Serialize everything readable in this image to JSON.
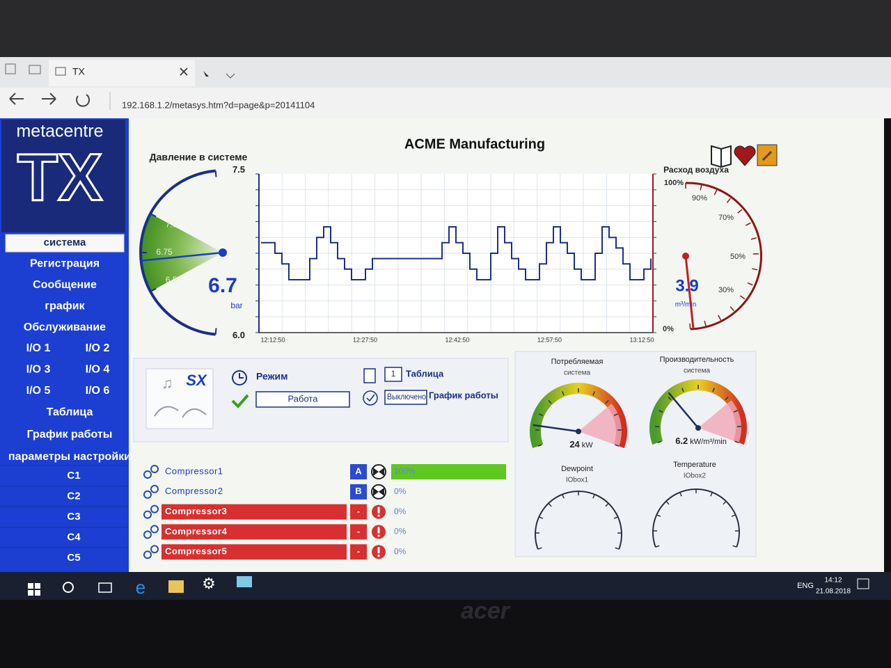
{
  "browser": {
    "tab_title": "TX",
    "url": "192.168.1.2/metasys.htm?d=page&p=20141104"
  },
  "sidebar": {
    "brand": "metacentre",
    "logo": "TX",
    "menu": [
      "система",
      "Регистрация",
      "Сообщение",
      "график",
      "Обслуживание"
    ],
    "io": [
      "I/O 1",
      "I/O 2",
      "I/O 3",
      "I/O 4",
      "I/O 5",
      "I/O 6"
    ],
    "menu2": [
      "Таблица",
      "График работы",
      "параметры настройки"
    ],
    "circuits": [
      "C1",
      "C2",
      "C3",
      "C4",
      "C5"
    ]
  },
  "title": "ACME Manufacturing",
  "pressure": {
    "label": "Давление в системе",
    "scale": [
      7.5,
      {
        "value": 7,
        "label": "7.0"
      },
      6.75,
      6.5,
      {
        "value": 6,
        "label": "6.0"
      }
    ],
    "value": 6.7,
    "unit": "bar"
  },
  "trend": {
    "x_labels": [
      "12:12:50",
      "12:27:50",
      "12:42:50",
      "12:57:50",
      "13:12:50"
    ],
    "values": [
      6.85,
      6.85,
      6.75,
      6.65,
      6.5,
      6.5,
      6.5,
      6.7,
      6.9,
      7.0,
      6.85,
      6.7,
      6.6,
      6.5,
      6.5,
      6.6,
      6.7,
      6.7,
      6.7,
      6.7,
      6.7,
      6.7,
      6.7,
      6.7,
      6.7,
      6.7,
      6.85,
      7.0,
      6.85,
      6.75,
      6.6,
      6.5,
      6.5,
      6.75,
      7.0,
      6.85,
      6.7,
      6.6,
      6.5,
      6.5,
      6.65,
      6.85,
      7.0,
      6.85,
      6.75,
      6.6,
      6.5,
      6.5,
      6.75,
      7.0,
      6.9,
      6.8,
      6.65,
      6.5,
      6.5,
      6.6,
      6.7
    ]
  },
  "airflow": {
    "label": "Расход воздуха",
    "scale": [
      "100%",
      "90%",
      "70%",
      "50%",
      "30%",
      "0%"
    ],
    "value": 3.9,
    "unit": "m³/min"
  },
  "mode_panel": {
    "sx": "SX",
    "mode_label": "Режим",
    "mode_value": "Работа",
    "table_index": 1,
    "table_label": "Таблица",
    "schedule_state": "Выключено",
    "schedule_label": "График работы"
  },
  "gauges": [
    {
      "title": "Потребляемая",
      "subtitle": "система",
      "value": 24,
      "unit": "kW"
    },
    {
      "title": "Производительность",
      "subtitle": "система",
      "value": 6.2,
      "unit": "kW/m³/min"
    },
    {
      "title": "Dewpoint",
      "subtitle": "IObox1"
    },
    {
      "title": "Temperature",
      "subtitle": "IObox2"
    }
  ],
  "compressors": [
    {
      "name": "Compressor1",
      "status": "A",
      "alarm": false,
      "load": 100,
      "load_label": "100%"
    },
    {
      "name": "Compressor2",
      "status": "B",
      "alarm": false,
      "load": 0,
      "load_label": "0%"
    },
    {
      "name": "Compressor3",
      "status": "-",
      "alarm": true,
      "load": 0,
      "load_label": "0%"
    },
    {
      "name": "Compressor4",
      "status": "-",
      "alarm": true,
      "load": 0,
      "load_label": "0%"
    },
    {
      "name": "Compressor5",
      "status": "-",
      "alarm": true,
      "load": 0,
      "load_label": "0%"
    }
  ],
  "taskbar": {
    "lang": "ENG",
    "time": "14:12",
    "date": "21.08.2018"
  },
  "bezel": "acer"
}
